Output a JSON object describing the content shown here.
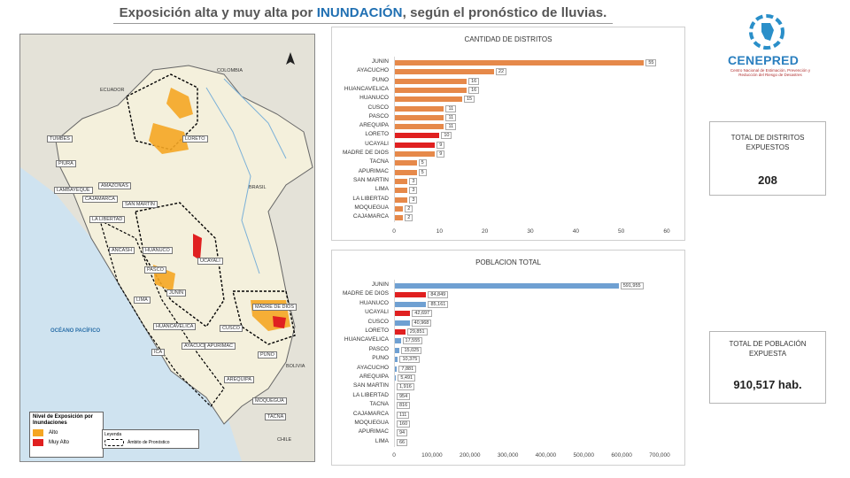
{
  "header": {
    "title_pre": "Exposición alta y muy alta por ",
    "title_highlight": "INUNDACIÓN",
    "title_post": ", según el pronóstico de lluvias."
  },
  "logo": {
    "name": "CENEPRED",
    "subtitle": "Centro Nacional de Estimación, Prevención y Reducción del Riesgo de Desastres"
  },
  "map": {
    "labels": {
      "colombia": "COLOMBIA",
      "ecuador": "ECUADOR",
      "brasil": "BRASIL",
      "bolivia": "BOLIVIA",
      "chile": "CHILE",
      "ocean": "OCÉANO PACÍFICO",
      "tumbes": "TUMBES",
      "loreto": "LORETO",
      "piura": "PIURA",
      "amazonas": "AMAZONAS",
      "lambayeque": "LAMBAYEQUE",
      "cajamarca": "CAJAMARCA",
      "san_martin": "SAN MARTÍN",
      "la_libertad": "LA LIBERTAD",
      "ancash": "ÁNCASH",
      "huanuco": "HUÁNUCO",
      "ucayali": "UCAYALI",
      "pasco": "PASCO",
      "lima": "LIMA",
      "junin": "JUNÍN",
      "madre_de_dios": "MADRE DE DIOS",
      "cusco": "CUSCO",
      "huancavelica": "HUANCAVELICA",
      "ica": "ICA",
      "ayacucho": "AYACUCHO",
      "apurimac": "APURÍMAC",
      "puno": "PUNO",
      "arequipa": "AREQUIPA",
      "moquegua": "MOQUEGUA",
      "tacna": "TACNA"
    },
    "legend": {
      "title": "Nivel de Exposición por Inundaciones",
      "items": [
        {
          "label": "Alto",
          "color": "#f5a623"
        },
        {
          "label": "Muy Alto",
          "color": "#e02020"
        }
      ],
      "legend2_title": "Leyenda",
      "legend2_item": "Ámbito de Pronóstico"
    }
  },
  "stats": {
    "districts_label": "TOTAL DE DISTRITOS EXPUESTOS",
    "districts_value": "208",
    "population_label": "TOTAL DE POBLACIÓN EXPUESTA",
    "population_value": "910,517 hab."
  },
  "chart_data": [
    {
      "type": "bar",
      "orientation": "horizontal",
      "title": "CANTIDAD DE DISTRITOS",
      "categories": [
        "JUNIN",
        "AYACUCHO",
        "PUNO",
        "HUANCAVELICA",
        "HUANUCO",
        "CUSCO",
        "PASCO",
        "AREQUIPA",
        "LORETO",
        "UCAYALI",
        "MADRE DE DIOS",
        "TACNA",
        "APURIMAC",
        "SAN MARTIN",
        "LIMA",
        "LA LIBERTAD",
        "MOQUEGUA",
        "CAJAMARCA"
      ],
      "values": [
        55,
        22,
        16,
        16,
        15,
        11,
        11,
        11,
        10,
        9,
        9,
        5,
        5,
        3,
        3,
        3,
        2,
        2
      ],
      "value_labels": [
        "55",
        "22",
        "16",
        "16",
        "15",
        "11",
        "11",
        "11",
        "10",
        "9",
        "9",
        "5",
        "5",
        "3",
        "3",
        "3",
        "2",
        "2"
      ],
      "bar_colors": [
        "#e6894a",
        "#e6894a",
        "#e6894a",
        "#e6894a",
        "#e6894a",
        "#e6894a",
        "#e6894a",
        "#e6894a",
        "#e02020",
        "#e02020",
        "#e6894a",
        "#e6894a",
        "#e6894a",
        "#e6894a",
        "#e6894a",
        "#e6894a",
        "#e6894a",
        "#e6894a"
      ],
      "xlim": [
        0,
        60
      ],
      "xticks": [
        "0",
        "10",
        "20",
        "30",
        "40",
        "50",
        "60"
      ]
    },
    {
      "type": "bar",
      "orientation": "horizontal",
      "title": "POBLACION TOTAL",
      "categories": [
        "JUNIN",
        "MADRE DE DIOS",
        "HUANUCO",
        "UCAYALI",
        "CUSCO",
        "LORETO",
        "HUANCAVELICA",
        "PASCO",
        "PUNO",
        "AYACUCHO",
        "AREQUIPA",
        "SAN MARTIN",
        "LA LIBERTAD",
        "TACNA",
        "CAJAMARCA",
        "MOQUEGUA",
        "APURIMAC",
        "LIMA"
      ],
      "values": [
        591955,
        84849,
        85161,
        42697,
        40968,
        29851,
        17555,
        15025,
        10375,
        7881,
        5491,
        1916,
        954,
        816,
        111,
        160,
        94,
        66
      ],
      "value_labels": [
        "591,955",
        "84,849",
        "85,161",
        "42,697",
        "40,968",
        "29,851",
        "17,555",
        "15,025",
        "10,375",
        "7,881",
        "5,491",
        "1,916",
        "954",
        "816",
        "111",
        "160",
        "94",
        "66"
      ],
      "bar_colors": [
        "#6fa0d2",
        "#e02020",
        "#6fa0d2",
        "#e02020",
        "#6fa0d2",
        "#e02020",
        "#6fa0d2",
        "#6fa0d2",
        "#6fa0d2",
        "#6fa0d2",
        "#6fa0d2",
        "#6fa0d2",
        "#6fa0d2",
        "#6fa0d2",
        "#6fa0d2",
        "#6fa0d2",
        "#6fa0d2",
        "#6fa0d2"
      ],
      "xlim": [
        0,
        700000
      ],
      "xticks": [
        "0",
        "100,000",
        "200,000",
        "300,000",
        "400,000",
        "500,000",
        "600,000",
        "700,000"
      ]
    }
  ]
}
